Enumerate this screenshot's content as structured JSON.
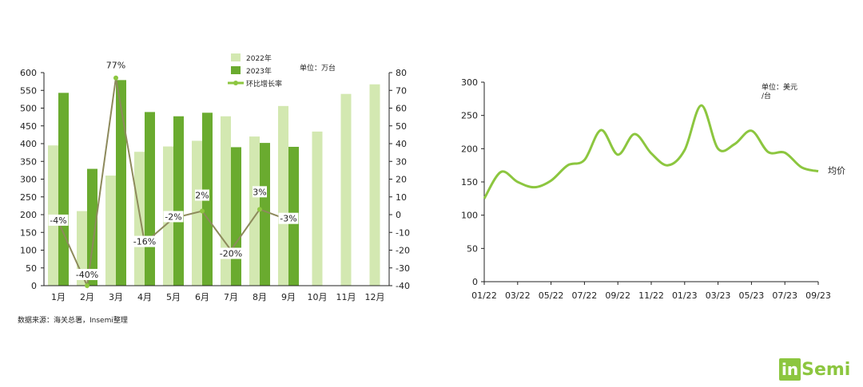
{
  "source_note": "数据来源：海关总署，Insemi整理",
  "logo": {
    "part1": "in",
    "part2": "Semi"
  },
  "colors": {
    "bar2022": "#d3e8b1",
    "bar2023": "#6aab2f",
    "growth": "#8d8a5c",
    "price": "#8cc63f",
    "axis": "#222222"
  },
  "chart_data": [
    {
      "type": "bar",
      "categories": [
        "1月",
        "2月",
        "3月",
        "4月",
        "5月",
        "6月",
        "7月",
        "8月",
        "9月",
        "10月",
        "11月",
        "12月"
      ],
      "unit_note": "单位：万台",
      "legend_position": "top",
      "y_left": {
        "min": 0,
        "max": 600,
        "step": 50
      },
      "y_right": {
        "min": -40,
        "max": 80,
        "step": 10
      },
      "series": [
        {
          "name": "2022年",
          "type": "bar",
          "values": [
            395,
            210,
            310,
            377,
            392,
            408,
            477,
            420,
            506,
            434,
            540,
            567
          ]
        },
        {
          "name": "2023年",
          "type": "bar",
          "values": [
            543,
            329,
            579,
            489,
            477,
            487,
            390,
            402,
            391,
            null,
            null,
            null
          ]
        },
        {
          "name": "环比增长率",
          "type": "line",
          "axis": "right",
          "values": [
            -4,
            -40,
            77,
            -16,
            -2,
            2,
            -20,
            3,
            -3,
            null,
            null,
            null
          ],
          "labels": [
            "-4%",
            "-40%",
            "77%",
            "-16%",
            "-2%",
            "2%",
            "-20%",
            "3%",
            "-3%",
            "",
            "",
            ""
          ]
        }
      ]
    },
    {
      "type": "line",
      "x_ticks": [
        "01/22",
        "03/22",
        "05/22",
        "07/22",
        "09/22",
        "11/22",
        "01/23",
        "03/23",
        "05/23",
        "07/23",
        "09/23"
      ],
      "unit_note_lines": [
        "单位：美元",
        "/台"
      ],
      "ylim": [
        0,
        300
      ],
      "y_step": 50,
      "grid": false,
      "series": [
        {
          "name": "均价",
          "x": [
            "01/22",
            "02/22",
            "03/22",
            "04/22",
            "05/22",
            "06/22",
            "07/22",
            "08/22",
            "09/22",
            "10/22",
            "11/22",
            "12/22",
            "01/23",
            "02/23",
            "03/23",
            "04/23",
            "05/23",
            "06/23",
            "07/23",
            "08/23",
            "09/23"
          ],
          "values": [
            125,
            165,
            150,
            142,
            152,
            175,
            183,
            228,
            191,
            222,
            193,
            175,
            198,
            265,
            200,
            207,
            227,
            195,
            194,
            172,
            166
          ]
        }
      ]
    }
  ]
}
